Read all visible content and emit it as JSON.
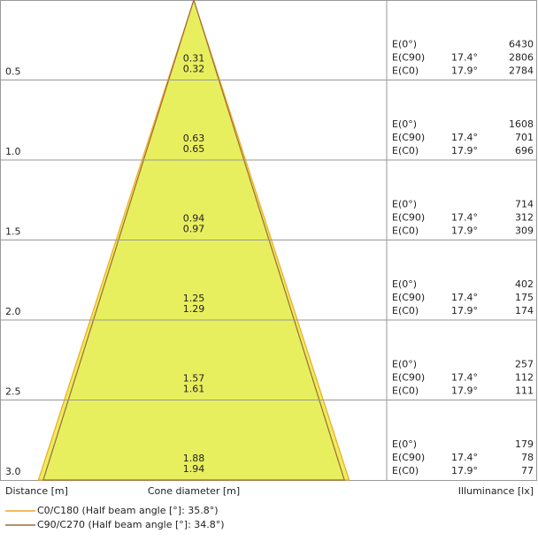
{
  "chart_data": {
    "type": "cone",
    "x_label": "Distance [m]",
    "center_label": "Cone diameter [m]",
    "right_label": "Illuminance [lx]",
    "e_labels": [
      "E(0°)",
      "E(C90)",
      "E(C0)"
    ],
    "half_angle_c90": "17.4°",
    "half_angle_c0": "17.9°",
    "series": [
      {
        "name": "C0/C180 (Half beam angle [°]: 35.8°)",
        "color": "#f5a623"
      },
      {
        "name": "C90/C270 (Half beam angle [°]: 34.8°)",
        "color": "#9b6b3a"
      }
    ],
    "distances": [
      0.5,
      {
        "value": 1,
        "label": "1.0"
      },
      1.5,
      {
        "value": 2,
        "label": "2.0"
      },
      2.5,
      {
        "value": 3,
        "label": "3.0"
      }
    ],
    "diameter_c90": [
      0.31,
      0.63,
      0.94,
      1.25,
      1.57,
      1.88
    ],
    "diameter_c0": [
      0.32,
      0.65,
      0.97,
      1.29,
      1.61,
      1.94
    ],
    "illuminance": [
      [
        "6430",
        "2806",
        "2784"
      ],
      [
        "1608",
        "701",
        "696"
      ],
      [
        "714",
        "312",
        "309"
      ],
      [
        "402",
        "175",
        "174"
      ],
      [
        "257",
        "112",
        "111"
      ],
      [
        "179",
        "78",
        "77"
      ]
    ]
  }
}
